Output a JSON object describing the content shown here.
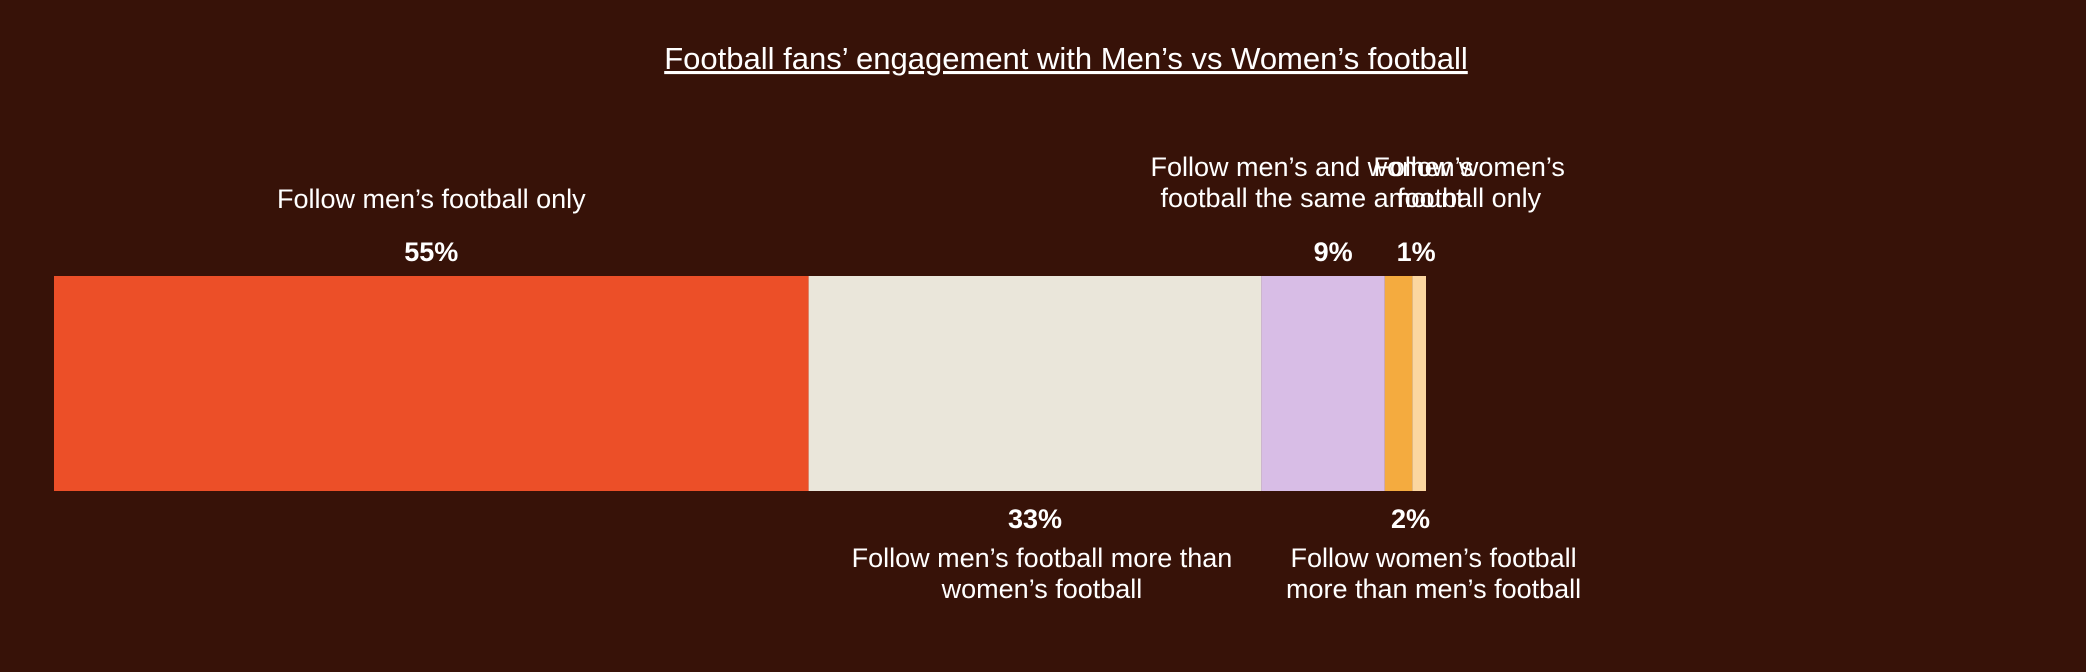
{
  "chart_data": {
    "type": "bar",
    "orientation": "horizontal-stacked-100",
    "title": "Football fans’ engagement with Men’s vs Women’s football",
    "categories": [
      "Follow men’s football only",
      "Follow men’s football more than women’s football",
      "Follow men’s and women’s football the same amount",
      "Follow women’s football more than men’s football",
      "Follow women’s football only"
    ],
    "category_lines": [
      [
        "Follow men’s football only"
      ],
      [
        "Follow men’s football more than",
        "women’s football"
      ],
      [
        "Follow men’s and women’s",
        "football the same amount"
      ],
      [
        "Follow women’s football",
        "more than men’s football"
      ],
      [
        "Follow women’s",
        "football only"
      ]
    ],
    "values": [
      55,
      33,
      9,
      2,
      1
    ],
    "value_labels": [
      "55%",
      "33%",
      "9%",
      "2%",
      "1%"
    ],
    "label_side": [
      "above",
      "below",
      "above",
      "below",
      "above"
    ],
    "colors": [
      "#ec4f28",
      "#eae6da",
      "#d8bde6",
      "#f4ab3f",
      "#fbd6a0"
    ],
    "background": "#371208",
    "unit": "%",
    "xlim": [
      0,
      100
    ],
    "grid": false,
    "legend": "none"
  }
}
